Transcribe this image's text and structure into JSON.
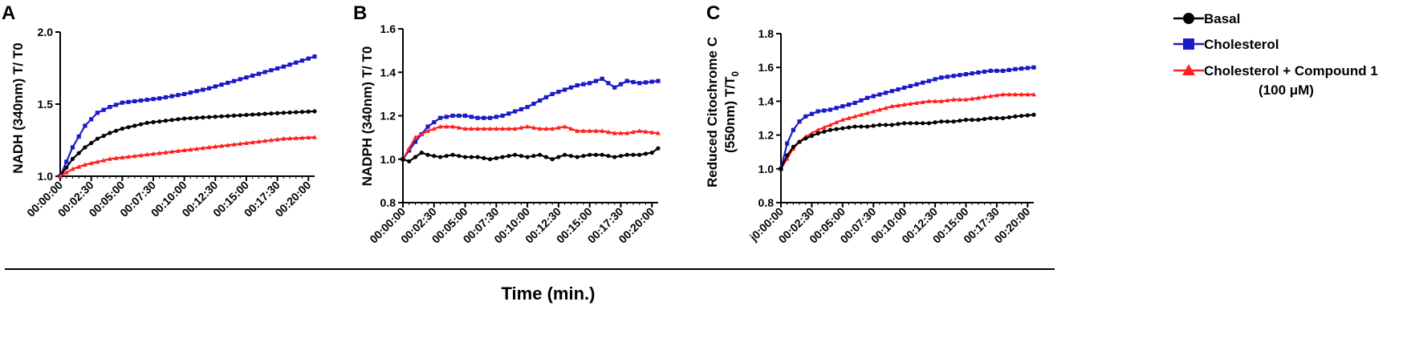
{
  "shared": {
    "xlabel": "Time (min.)",
    "xticks": [
      "00:00:00",
      "00:02:30",
      "00:05:00",
      "00:07:30",
      "00:10:00",
      "00:12:30",
      "00:15:00",
      "00:17:30",
      "00:20:00"
    ],
    "panel_c_first_xtick": "j0:00:00"
  },
  "legend": {
    "items": [
      {
        "label": "Basal",
        "color": "#000000",
        "marker": "circle"
      },
      {
        "label": "Cholesterol",
        "color": "#1a1ac8",
        "marker": "square"
      },
      {
        "label": "Cholesterol + Compound 1",
        "color": "#ff2020",
        "marker": "triangle"
      }
    ],
    "sub_label": "(100 μM)"
  },
  "chart_data": [
    {
      "type": "line",
      "panel": "A",
      "ylabel": "NADH (340nm) T/ T0",
      "ylim": [
        1.0,
        2.0
      ],
      "yticks": [
        "1.0",
        "1.5",
        "2.0"
      ],
      "xlim": [
        0,
        20.5
      ],
      "xticks_min": [
        0,
        2.5,
        5,
        7.5,
        10,
        12.5,
        15,
        17.5,
        20
      ],
      "series": [
        {
          "name": "Cholesterol",
          "x": [
            0,
            1,
            2,
            3,
            4,
            5,
            6,
            7,
            8,
            10,
            12,
            14,
            16,
            18,
            20.5
          ],
          "values": [
            1.0,
            1.2,
            1.35,
            1.44,
            1.48,
            1.51,
            1.52,
            1.53,
            1.54,
            1.57,
            1.61,
            1.66,
            1.71,
            1.76,
            1.83
          ]
        },
        {
          "name": "Basal",
          "x": [
            0,
            1,
            2,
            3,
            4,
            5,
            6,
            7,
            8,
            10,
            12,
            14,
            16,
            18,
            20.5
          ],
          "values": [
            1.0,
            1.12,
            1.2,
            1.26,
            1.3,
            1.33,
            1.35,
            1.37,
            1.38,
            1.4,
            1.41,
            1.42,
            1.43,
            1.44,
            1.45
          ]
        },
        {
          "name": "Cholesterol + Compound 1",
          "x": [
            0,
            1,
            2,
            3,
            4,
            5,
            6,
            7,
            8,
            10,
            12,
            14,
            16,
            18,
            20.5
          ],
          "values": [
            1.0,
            1.05,
            1.08,
            1.1,
            1.12,
            1.13,
            1.14,
            1.15,
            1.16,
            1.18,
            1.2,
            1.22,
            1.24,
            1.26,
            1.27
          ]
        }
      ]
    },
    {
      "type": "line",
      "panel": "B",
      "ylabel": "NADPH (340nm) T/ T0",
      "ylim": [
        0.8,
        1.6
      ],
      "yticks": [
        "0.8",
        "1.0",
        "1.2",
        "1.4",
        "1.6"
      ],
      "xlim": [
        0,
        20.5
      ],
      "xticks_min": [
        0,
        2.5,
        5,
        7.5,
        10,
        12.5,
        15,
        17.5,
        20
      ],
      "series": [
        {
          "name": "Cholesterol",
          "x": [
            0,
            1,
            2,
            3,
            4,
            5,
            6,
            7,
            8,
            9,
            10,
            11,
            12,
            13,
            14,
            15,
            16,
            17,
            18,
            19,
            20.5
          ],
          "values": [
            1.0,
            1.08,
            1.15,
            1.19,
            1.2,
            1.2,
            1.19,
            1.19,
            1.2,
            1.22,
            1.24,
            1.27,
            1.3,
            1.32,
            1.34,
            1.35,
            1.37,
            1.33,
            1.36,
            1.35,
            1.36
          ]
        },
        {
          "name": "Cholesterol + Compound 1",
          "x": [
            0,
            1,
            2,
            3,
            4,
            5,
            6,
            7,
            8,
            9,
            10,
            11,
            12,
            13,
            14,
            15,
            16,
            17,
            18,
            19,
            20.5
          ],
          "values": [
            1.0,
            1.1,
            1.13,
            1.15,
            1.15,
            1.14,
            1.14,
            1.14,
            1.14,
            1.14,
            1.15,
            1.14,
            1.14,
            1.15,
            1.13,
            1.13,
            1.13,
            1.12,
            1.12,
            1.13,
            1.12
          ]
        },
        {
          "name": "Basal",
          "x": [
            0,
            0.5,
            1,
            1.5,
            2,
            3,
            4,
            5,
            6,
            7,
            8,
            9,
            10,
            11,
            12,
            13,
            14,
            15,
            16,
            17,
            18,
            19,
            20,
            20.5
          ],
          "values": [
            1.0,
            0.99,
            1.01,
            1.03,
            1.02,
            1.01,
            1.02,
            1.01,
            1.01,
            1.0,
            1.01,
            1.02,
            1.01,
            1.02,
            1.0,
            1.02,
            1.01,
            1.02,
            1.02,
            1.01,
            1.02,
            1.02,
            1.03,
            1.05
          ]
        }
      ]
    },
    {
      "type": "line",
      "panel": "C",
      "ylabel_line1": "Reduced Citochrome C",
      "ylabel_line2": "(550nm) T/T",
      "ylabel_sub": "0",
      "ylim": [
        0.8,
        1.8
      ],
      "yticks": [
        "0.8",
        "1.0",
        "1.2",
        "1.4",
        "1.6",
        "1.8"
      ],
      "xlim": [
        0,
        20.5
      ],
      "xticks_min": [
        0,
        2.5,
        5,
        7.5,
        10,
        12.5,
        15,
        17.5,
        20
      ],
      "series": [
        {
          "name": "Cholesterol",
          "x": [
            0,
            0.5,
            1,
            1.5,
            2,
            3,
            4,
            5,
            6,
            7,
            8,
            9,
            10,
            11,
            12,
            13,
            14,
            15,
            16,
            17,
            18,
            19,
            20.5
          ],
          "values": [
            1.0,
            1.15,
            1.23,
            1.28,
            1.31,
            1.34,
            1.35,
            1.37,
            1.39,
            1.42,
            1.44,
            1.46,
            1.48,
            1.5,
            1.52,
            1.54,
            1.55,
            1.56,
            1.57,
            1.58,
            1.58,
            1.59,
            1.6
          ]
        },
        {
          "name": "Cholesterol + Compound 1",
          "x": [
            0,
            0.5,
            1,
            1.5,
            2,
            3,
            4,
            5,
            6,
            7,
            8,
            9,
            10,
            11,
            12,
            13,
            14,
            15,
            16,
            17,
            18,
            19,
            20.5
          ],
          "values": [
            1.0,
            1.06,
            1.12,
            1.16,
            1.19,
            1.23,
            1.26,
            1.29,
            1.31,
            1.33,
            1.35,
            1.37,
            1.38,
            1.39,
            1.4,
            1.4,
            1.41,
            1.41,
            1.42,
            1.43,
            1.44,
            1.44,
            1.44
          ]
        },
        {
          "name": "Basal",
          "x": [
            0,
            0.5,
            1,
            1.5,
            2,
            3,
            4,
            5,
            6,
            7,
            8,
            9,
            10,
            11,
            12,
            13,
            14,
            15,
            16,
            17,
            18,
            19,
            20.5
          ],
          "values": [
            1.0,
            1.08,
            1.13,
            1.16,
            1.18,
            1.21,
            1.23,
            1.24,
            1.25,
            1.25,
            1.26,
            1.26,
            1.27,
            1.27,
            1.27,
            1.28,
            1.28,
            1.29,
            1.29,
            1.3,
            1.3,
            1.31,
            1.32
          ]
        }
      ]
    }
  ]
}
